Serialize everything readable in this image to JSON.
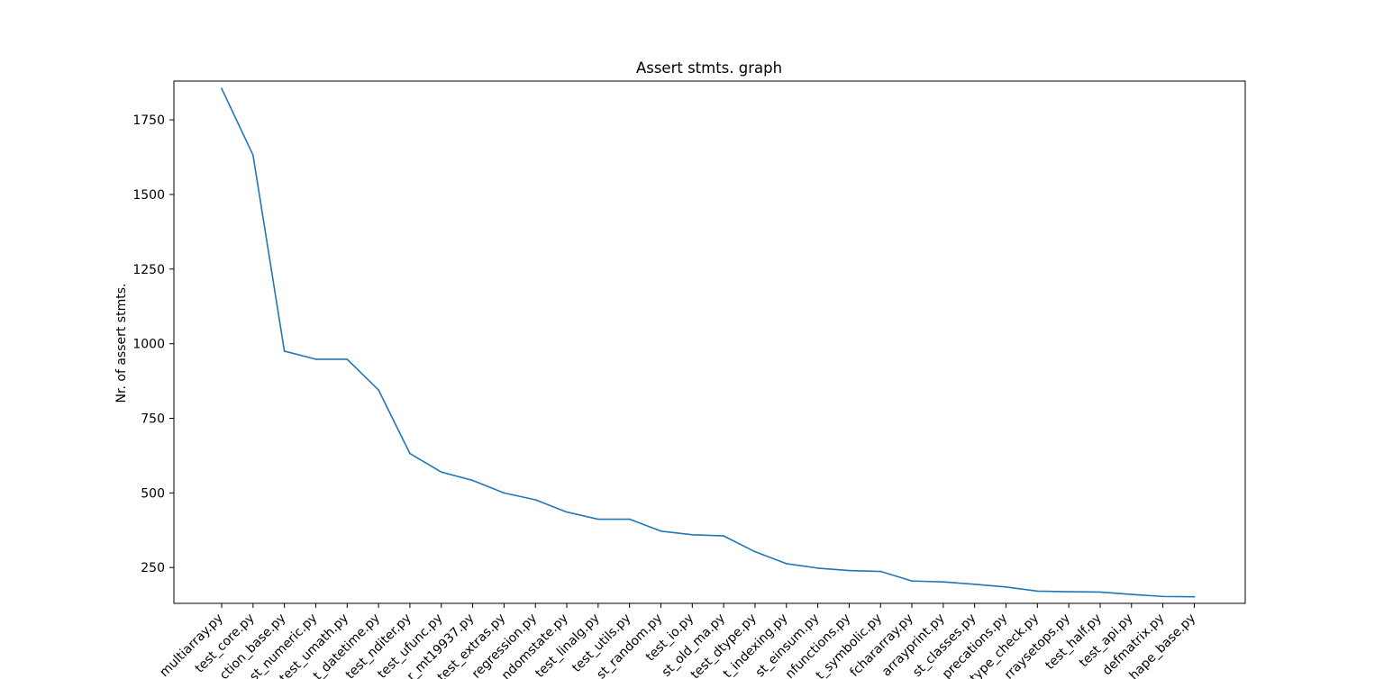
{
  "chart_data": {
    "type": "line",
    "title": "Assert stmts. graph",
    "xlabel": "",
    "ylabel": "Nr. of assert stmts.",
    "ylim": [
      130,
      1880
    ],
    "yticks": [
      250,
      500,
      750,
      1000,
      1250,
      1500,
      1750
    ],
    "grid": false,
    "legend": "none",
    "line_color": "#1f77b4",
    "x": [
      "multiarray.py",
      "test_core.py",
      "ction_base.py",
      "st_numeric.py",
      "test_umath.py",
      "t_datetime.py",
      "test_nditer.py",
      "test_ufunc.py",
      "r_mt19937.py",
      "test_extras.py",
      "regression.py",
      "ndomstate.py",
      "test_linalg.py",
      "test_utils.py",
      "st_random.py",
      "test_io.py",
      "st_old_ma.py",
      "test_dtype.py",
      "t_indexing.py",
      "st_einsum.py",
      "nfunctions.py",
      "t_symbolic.py",
      "fchararray.py",
      "arrayprint.py",
      "st_classes.py",
      "precations.py",
      "type_check.py",
      "rraysetops.py",
      "test_half.py",
      "test_api.py",
      "defmatrix.py",
      "hape_base.py"
    ],
    "series": [
      {
        "values": [
          1855,
          1632,
          975,
          948,
          948,
          845,
          632,
          570,
          542,
          500,
          477,
          436,
          412,
          412,
          372,
          360,
          356,
          303,
          263,
          248,
          240,
          237,
          205,
          202,
          194,
          185,
          171,
          169,
          168,
          160,
          153,
          152
        ]
      }
    ]
  }
}
